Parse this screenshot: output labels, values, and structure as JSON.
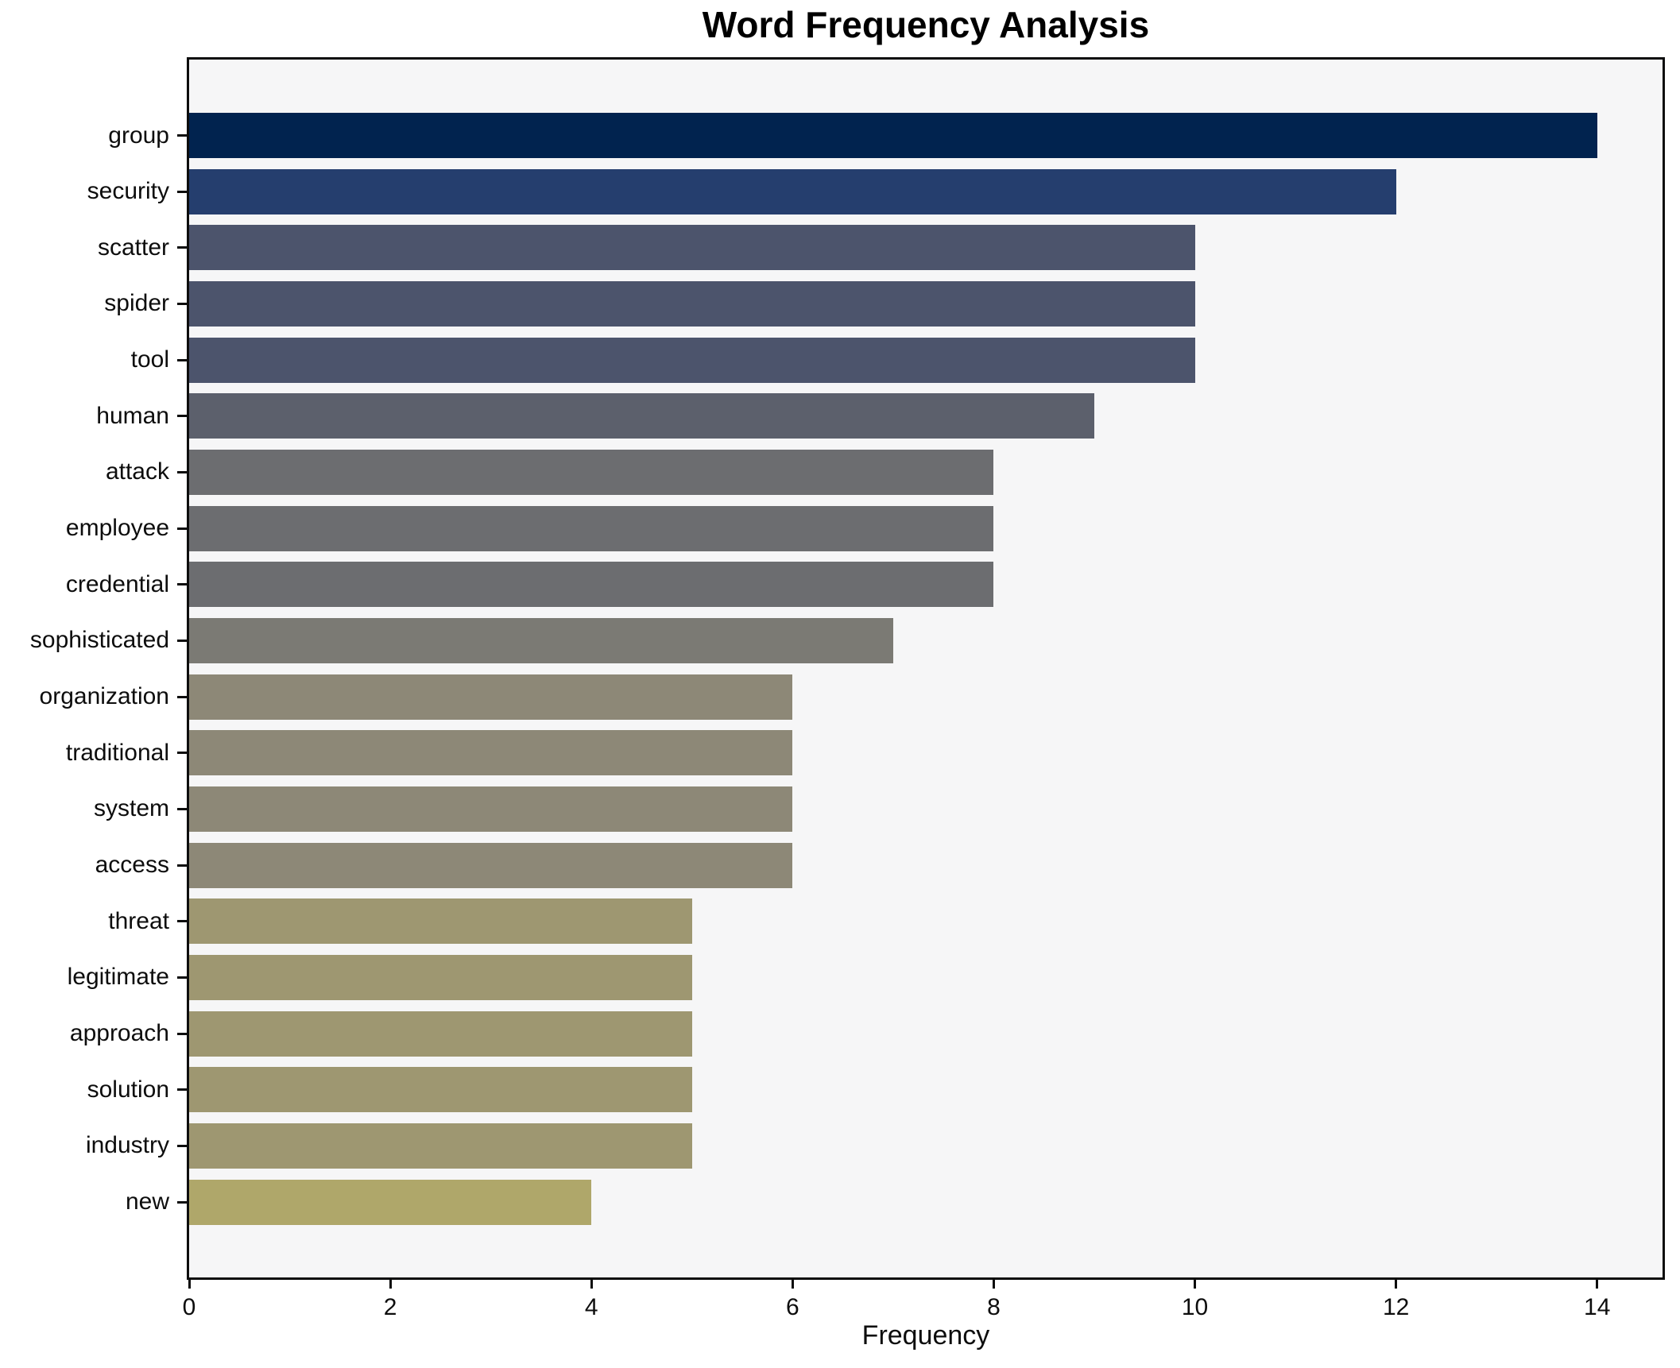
{
  "title": "Word Frequency Analysis",
  "chart_data": {
    "type": "bar",
    "orientation": "horizontal",
    "title": "Word Frequency Analysis",
    "xlabel": "Frequency",
    "ylabel": "",
    "categories": [
      "group",
      "security",
      "scatter",
      "spider",
      "tool",
      "human",
      "attack",
      "employee",
      "credential",
      "sophisticated",
      "organization",
      "traditional",
      "system",
      "access",
      "threat",
      "legitimate",
      "approach",
      "solution",
      "industry",
      "new"
    ],
    "values": [
      14,
      12,
      10,
      10,
      10,
      9,
      8,
      8,
      8,
      7,
      6,
      6,
      6,
      6,
      5,
      5,
      5,
      5,
      5,
      4
    ],
    "bar_colors": [
      "#01234f",
      "#253e6e",
      "#4c546c",
      "#4c546c",
      "#4c546c",
      "#5c606c",
      "#6c6d70",
      "#6c6d70",
      "#6c6d70",
      "#7b7a74",
      "#8d8877",
      "#8d8877",
      "#8d8877",
      "#8d8877",
      "#9e9771",
      "#9e9771",
      "#9e9771",
      "#9e9771",
      "#9e9771",
      "#afa76a"
    ],
    "x_ticks": [
      0,
      2,
      4,
      6,
      8,
      10,
      12,
      14
    ],
    "xlim": [
      0,
      14.65
    ],
    "grid": "off",
    "legend": "none",
    "plot_background": "#f6f6f7",
    "spine_color": "#0d0d0d"
  }
}
